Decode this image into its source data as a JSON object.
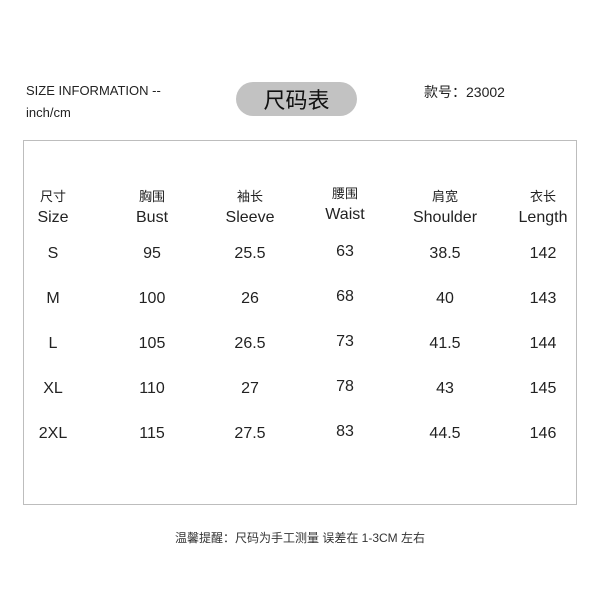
{
  "header": {
    "size_information": "SIZE INFORMATION  --",
    "unit": "inch/cm",
    "title": "尺码表",
    "style_number": "款号：23002"
  },
  "table": {
    "columns": [
      {
        "cn": "尺寸",
        "en": "Size"
      },
      {
        "cn": "胸围",
        "en": "Bust"
      },
      {
        "cn": "袖长",
        "en": "Sleeve"
      },
      {
        "cn": "腰围",
        "en": "Waist"
      },
      {
        "cn": "肩宽",
        "en": "Shoulder"
      },
      {
        "cn": "衣长",
        "en": "Length"
      }
    ],
    "rows": [
      [
        "S",
        "95",
        "25.5",
        "63",
        "38.5",
        "142"
      ],
      [
        "M",
        "100",
        "26",
        "68",
        "40",
        "143"
      ],
      [
        "L",
        "105",
        "26.5",
        "73",
        "41.5",
        "144"
      ],
      [
        "XL",
        "110",
        "27",
        "78",
        "43",
        "145"
      ],
      [
        "2XL",
        "115",
        "27.5",
        "83",
        "44.5",
        "146"
      ]
    ]
  },
  "footer": {
    "note": "温馨提醒：尺码为手工测量 误差在 1-3CM 左右"
  },
  "colors": {
    "pill": "#c2c2c2",
    "border": "#bdbdbd"
  }
}
